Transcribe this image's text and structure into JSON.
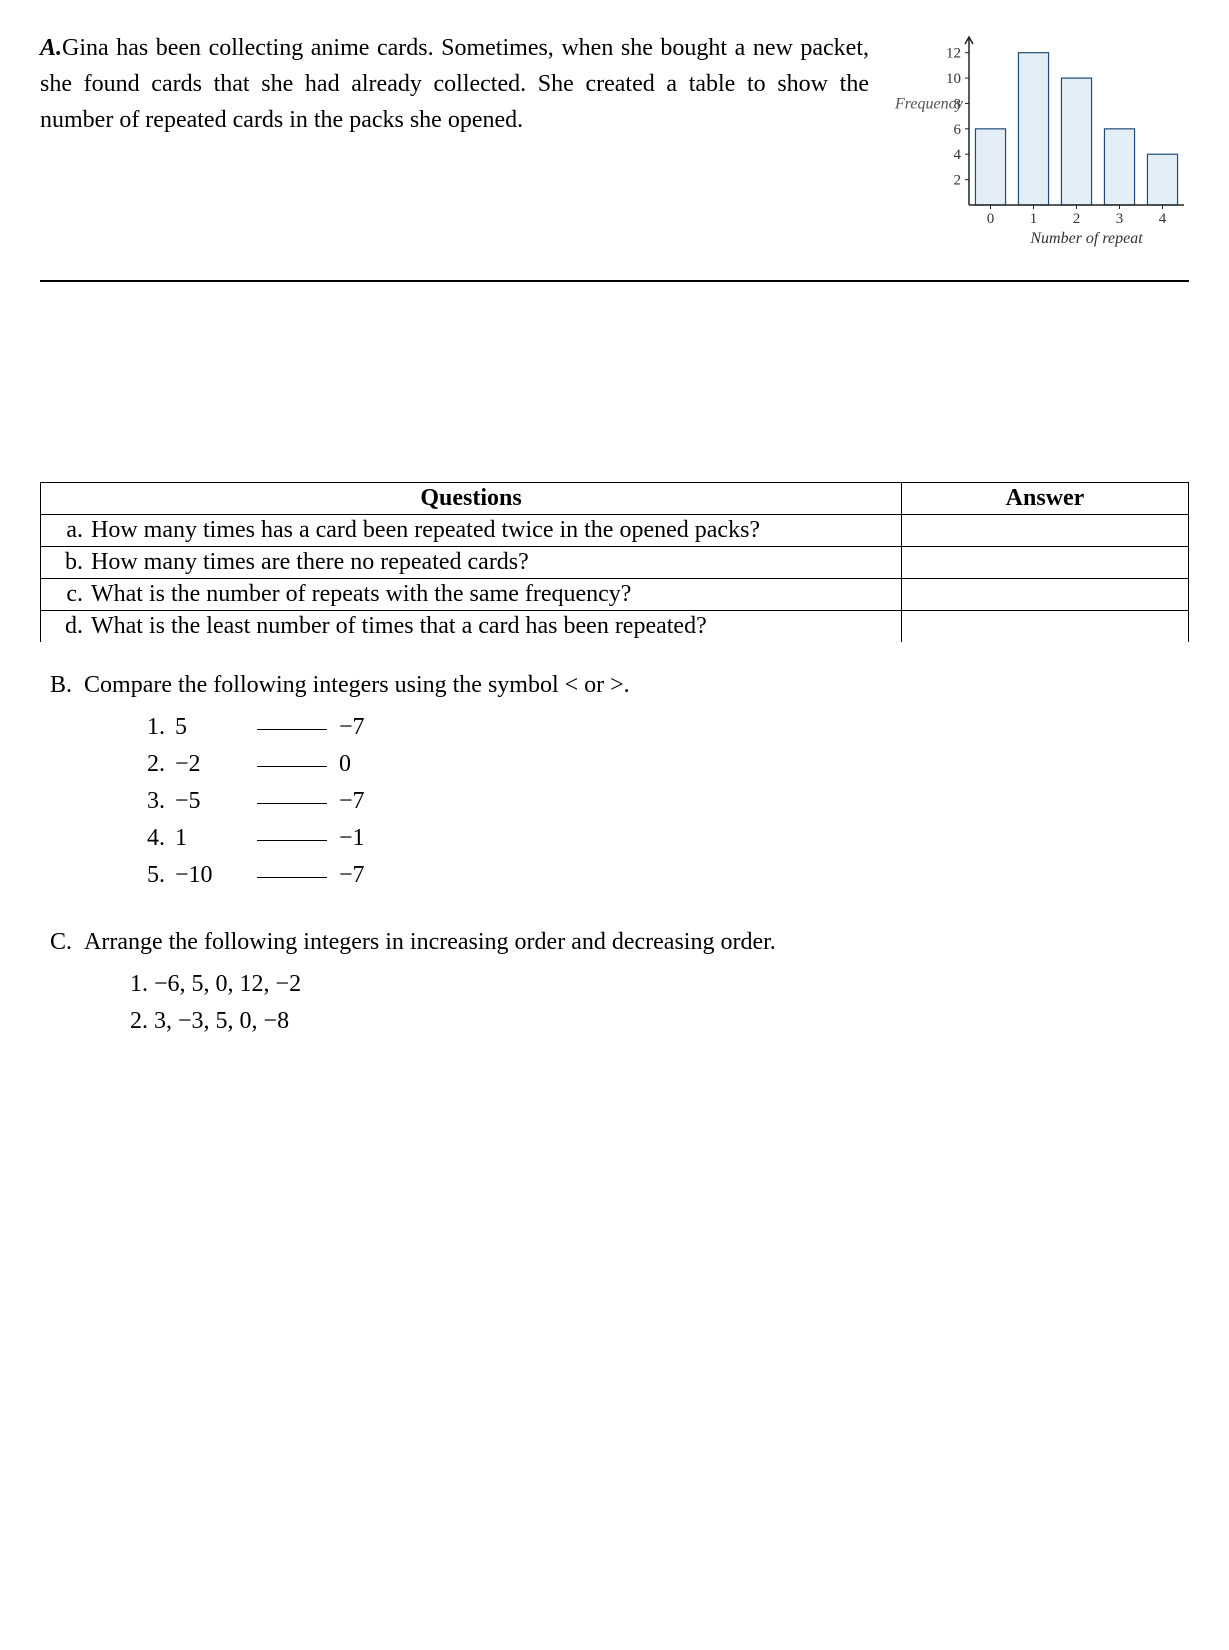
{
  "sectionA": {
    "label": "A.",
    "text": "Gina has been collecting anime cards. Sometimes, when she bought a new packet, she found cards that she had already collected. She created a table to show the number of repeated cards in the packs she opened."
  },
  "chart": {
    "type": "bar",
    "ylabel": "Frequency",
    "xlabel": "Number of repeat",
    "categories": [
      "0",
      "1",
      "2",
      "3",
      "4"
    ],
    "values": [
      6,
      12,
      10,
      6,
      4
    ],
    "yticks": [
      2,
      4,
      6,
      8,
      10,
      12
    ],
    "ylim": [
      0,
      13
    ],
    "bar_fill": "#e4eef6",
    "bar_stroke": "#1f4b7a",
    "axis_color": "#222",
    "bar_width": 0.7
  },
  "qtable": {
    "header_q": "Questions",
    "header_a": "Answer",
    "rows": [
      {
        "letter": "a.",
        "text": "How many times has a card been repeated twice in the opened packs?"
      },
      {
        "letter": "b.",
        "text": "How many times are there no repeated cards?"
      },
      {
        "letter": "c.",
        "text": "What is the number of repeats with the same frequency?"
      },
      {
        "letter": "d.",
        "text": "What is the least number of times that a card has been repeated?"
      }
    ]
  },
  "sectionB": {
    "label": "B.",
    "prompt": "Compare the following integers using the symbol < or >.",
    "items": [
      {
        "n": "1.",
        "l": "5",
        "r": "−7"
      },
      {
        "n": "2.",
        "l": "−2",
        "r": "0"
      },
      {
        "n": "3.",
        "l": "−5",
        "r": "−7"
      },
      {
        "n": "4.",
        "l": "1",
        "r": "−1"
      },
      {
        "n": "5.",
        "l": "−10",
        "r": "−7"
      }
    ]
  },
  "sectionC": {
    "label": "C.",
    "prompt": "Arrange the following integers in increasing order and decreasing order.",
    "items": [
      {
        "n": "1.",
        "text": "−6, 5, 0, 12, −2"
      },
      {
        "n": "2.",
        "text": "3, −3, 5, 0, −8"
      }
    ]
  }
}
